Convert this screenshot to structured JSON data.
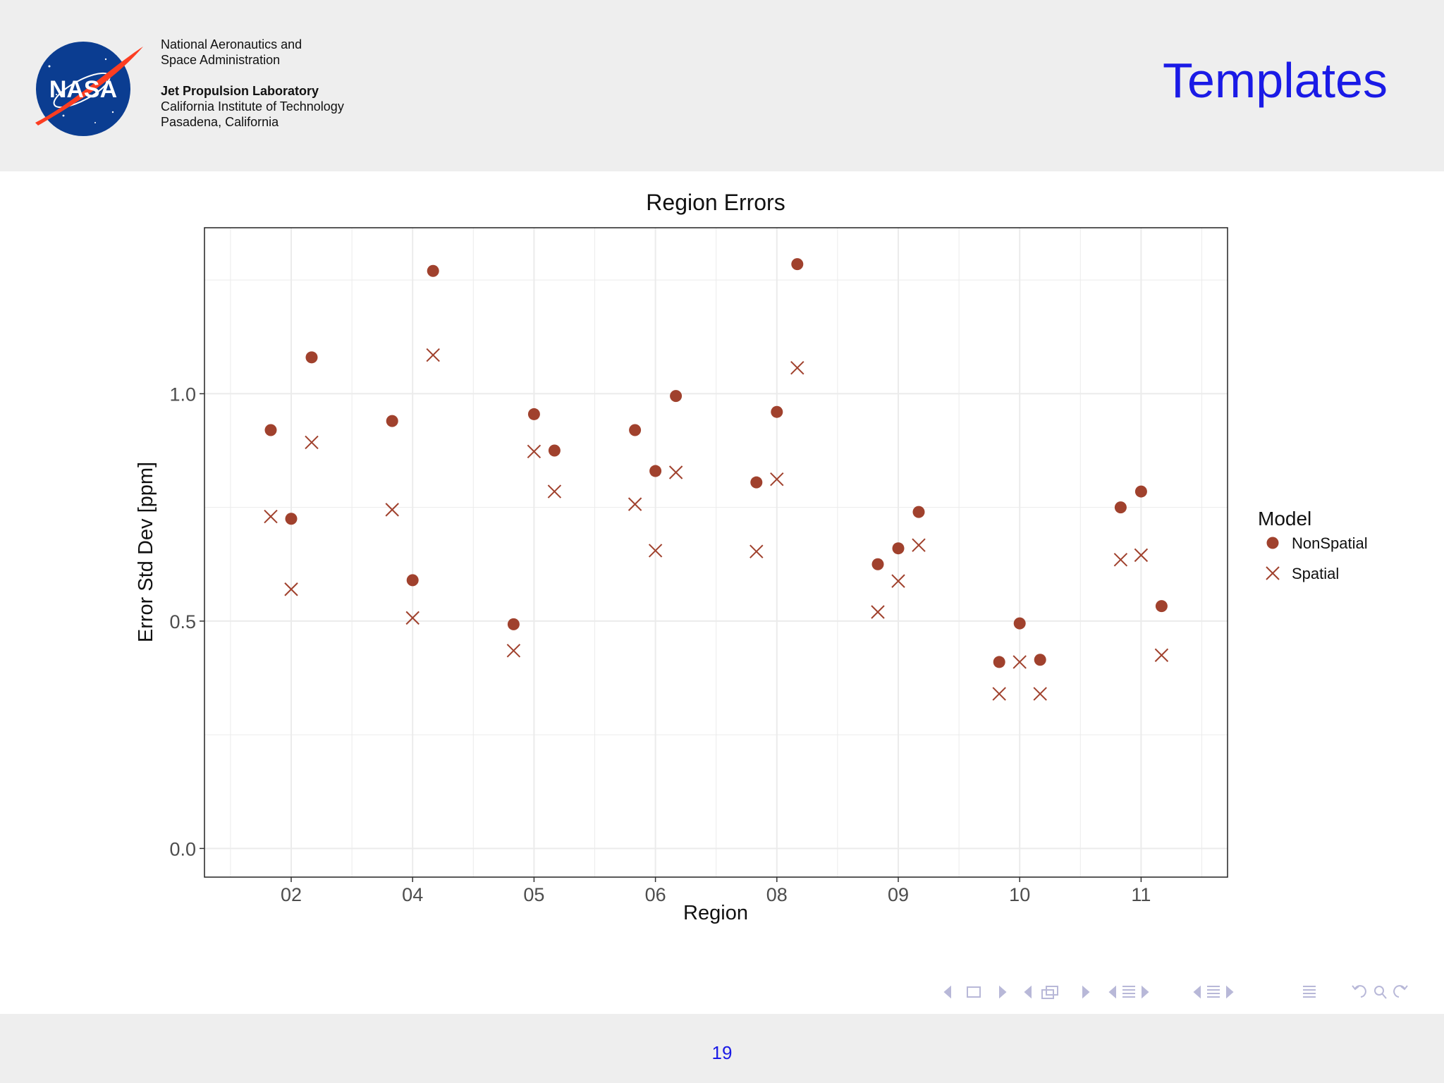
{
  "header": {
    "org_line1": "National Aeronautics and",
    "org_line2": "Space Administration",
    "lab_name": "Jet Propulsion Laboratory",
    "inst_line1": "California Institute of Technology",
    "inst_line2": "Pasadena, California",
    "slide_title": "Templates",
    "logo_text": "NASA"
  },
  "footer": {
    "page_number": "19"
  },
  "colors": {
    "title": "#1a1ae6",
    "point": "#a0412d",
    "header_bg": "#eeeeee",
    "grid": "#ebebeb"
  },
  "chart_data": {
    "type": "scatter",
    "title": "Region Errors",
    "xlabel": "Region",
    "ylabel": "Error Std Dev [ppm]",
    "categories": [
      "02",
      "04",
      "05",
      "06",
      "08",
      "09",
      "10",
      "11"
    ],
    "yticks": [
      "0.0",
      "0.5",
      "1.0"
    ],
    "ylim": [
      -0.063,
      1.365
    ],
    "grid": true,
    "legend": {
      "title": "Model",
      "placement": "right"
    },
    "series": [
      {
        "name": "NonSpatial",
        "marker": "circle",
        "points": [
          {
            "region": "02",
            "offset": -1,
            "y": 0.92
          },
          {
            "region": "02",
            "offset": 0,
            "y": 0.725
          },
          {
            "region": "02",
            "offset": 1,
            "y": 1.08
          },
          {
            "region": "04",
            "offset": -1,
            "y": 0.94
          },
          {
            "region": "04",
            "offset": 0,
            "y": 0.59
          },
          {
            "region": "04",
            "offset": 1,
            "y": 1.27
          },
          {
            "region": "05",
            "offset": -1,
            "y": 0.493
          },
          {
            "region": "05",
            "offset": 0,
            "y": 0.955
          },
          {
            "region": "05",
            "offset": 1,
            "y": 0.875
          },
          {
            "region": "06",
            "offset": -1,
            "y": 0.92
          },
          {
            "region": "06",
            "offset": 0,
            "y": 0.83
          },
          {
            "region": "06",
            "offset": 1,
            "y": 0.995
          },
          {
            "region": "08",
            "offset": -1,
            "y": 0.805
          },
          {
            "region": "08",
            "offset": 0,
            "y": 0.96
          },
          {
            "region": "08",
            "offset": 1,
            "y": 1.285
          },
          {
            "region": "09",
            "offset": -1,
            "y": 0.625
          },
          {
            "region": "09",
            "offset": 0,
            "y": 0.66
          },
          {
            "region": "09",
            "offset": 1,
            "y": 0.74
          },
          {
            "region": "10",
            "offset": -1,
            "y": 0.41
          },
          {
            "region": "10",
            "offset": 0,
            "y": 0.495
          },
          {
            "region": "10",
            "offset": 1,
            "y": 0.415
          },
          {
            "region": "11",
            "offset": -1,
            "y": 0.75
          },
          {
            "region": "11",
            "offset": 0,
            "y": 0.785
          },
          {
            "region": "11",
            "offset": 1,
            "y": 0.533
          }
        ]
      },
      {
        "name": "Spatial",
        "marker": "cross",
        "points": [
          {
            "region": "02",
            "offset": -1,
            "y": 0.73
          },
          {
            "region": "02",
            "offset": 0,
            "y": 0.57
          },
          {
            "region": "02",
            "offset": 1,
            "y": 0.893
          },
          {
            "region": "04",
            "offset": -1,
            "y": 0.745
          },
          {
            "region": "04",
            "offset": 0,
            "y": 0.507
          },
          {
            "region": "04",
            "offset": 1,
            "y": 1.085
          },
          {
            "region": "05",
            "offset": -1,
            "y": 0.435
          },
          {
            "region": "05",
            "offset": 0,
            "y": 0.873
          },
          {
            "region": "05",
            "offset": 1,
            "y": 0.785
          },
          {
            "region": "06",
            "offset": -1,
            "y": 0.757
          },
          {
            "region": "06",
            "offset": 0,
            "y": 0.655
          },
          {
            "region": "06",
            "offset": 1,
            "y": 0.827
          },
          {
            "region": "08",
            "offset": -1,
            "y": 0.653
          },
          {
            "region": "08",
            "offset": 0,
            "y": 0.812
          },
          {
            "region": "08",
            "offset": 1,
            "y": 1.057
          },
          {
            "region": "09",
            "offset": -1,
            "y": 0.52
          },
          {
            "region": "09",
            "offset": 0,
            "y": 0.588
          },
          {
            "region": "09",
            "offset": 1,
            "y": 0.667
          },
          {
            "region": "10",
            "offset": -1,
            "y": 0.34
          },
          {
            "region": "10",
            "offset": 0,
            "y": 0.41
          },
          {
            "region": "10",
            "offset": 1,
            "y": 0.34
          },
          {
            "region": "11",
            "offset": -1,
            "y": 0.635
          },
          {
            "region": "11",
            "offset": 0,
            "y": 0.645
          },
          {
            "region": "11",
            "offset": 1,
            "y": 0.425
          }
        ]
      }
    ]
  }
}
